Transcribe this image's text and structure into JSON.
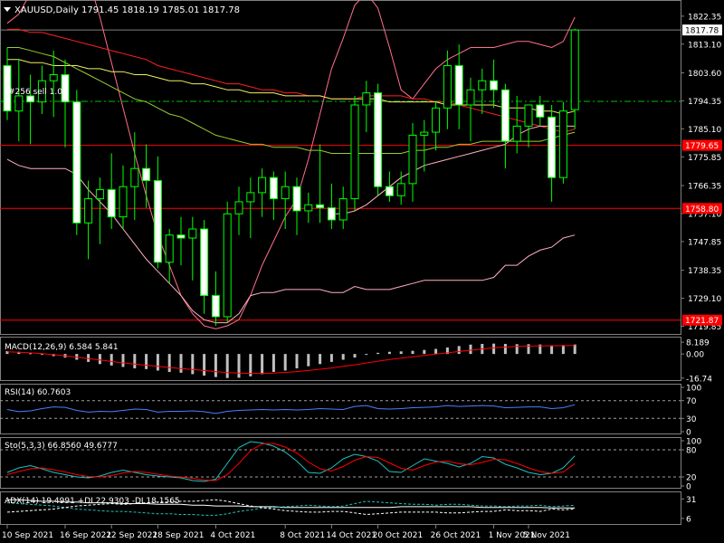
{
  "header": {
    "symbol_line": "XAUUSD,Daily  1791.45 1818.19 1785.01 1817.78",
    "trade_label": "#256  sell 1.00"
  },
  "chart_data": [
    {
      "type": "candlestick",
      "name": "main",
      "ylim": [
        1717.6,
        1826.5
      ],
      "y_ticks": [
        "1822.35",
        "1813.10",
        "1803.60",
        "1794.35",
        "1785.10",
        "1775.85",
        "1766.35",
        "1757.10",
        "1747.85",
        "1738.35",
        "1729.10",
        "1719.85"
      ],
      "y_tick_values": [
        1822.35,
        1813.1,
        1803.6,
        1794.35,
        1785.1,
        1775.85,
        1766.35,
        1757.1,
        1747.85,
        1738.35,
        1729.1,
        1719.85
      ],
      "current_price": {
        "label": "1817.78",
        "value": 1817.78
      },
      "levels": [
        {
          "label": "1779.65",
          "value": 1779.65,
          "color": "#ff0000"
        },
        {
          "label": "1758.80",
          "value": 1758.8,
          "color": "#ff0000"
        },
        {
          "label": "1721.87",
          "value": 1721.87,
          "color": "#ff0000"
        }
      ],
      "trade_line": {
        "value": 1794.2,
        "color": "#00c000"
      },
      "ohlc": [
        [
          1806.0,
          1812.0,
          1788.0,
          1791.0
        ],
        [
          1791.0,
          1808.0,
          1781.0,
          1796.0
        ],
        [
          1796.0,
          1803.0,
          1780.0,
          1794.0
        ],
        [
          1794.0,
          1806.0,
          1790.0,
          1801.0
        ],
        [
          1801.0,
          1811.0,
          1789.0,
          1803.0
        ],
        [
          1803.0,
          1808.0,
          1779.0,
          1794.0
        ],
        [
          1794.0,
          1798.0,
          1750.0,
          1754.0
        ],
        [
          1754.0,
          1768.0,
          1742.0,
          1762.0
        ],
        [
          1762.0,
          1769.0,
          1747.0,
          1765.0
        ],
        [
          1765.0,
          1777.0,
          1752.0,
          1756.0
        ],
        [
          1756.0,
          1773.0,
          1752.0,
          1766.0
        ],
        [
          1766.0,
          1784.0,
          1755.0,
          1772.0
        ],
        [
          1772.0,
          1780.0,
          1759.0,
          1768.0
        ],
        [
          1768.0,
          1776.0,
          1739.0,
          1741.0
        ],
        [
          1741.0,
          1752.0,
          1734.0,
          1750.0
        ],
        [
          1750.0,
          1756.0,
          1740.0,
          1749.0
        ],
        [
          1749.0,
          1756.0,
          1735.0,
          1752.0
        ],
        [
          1752.0,
          1755.0,
          1724.0,
          1730.0
        ],
        [
          1730.0,
          1738.0,
          1720.0,
          1723.0
        ],
        [
          1723.0,
          1761.0,
          1721.0,
          1757.0
        ],
        [
          1757.0,
          1766.0,
          1750.0,
          1761.0
        ],
        [
          1761.0,
          1769.0,
          1749.0,
          1764.0
        ],
        [
          1764.0,
          1772.0,
          1756.0,
          1769.0
        ],
        [
          1769.0,
          1771.0,
          1755.0,
          1762.0
        ],
        [
          1762.0,
          1771.0,
          1752.0,
          1766.0
        ],
        [
          1766.0,
          1769.0,
          1750.0,
          1758.0
        ],
        [
          1758.0,
          1764.0,
          1754.0,
          1760.0
        ],
        [
          1760.0,
          1780.0,
          1754.0,
          1759.0
        ],
        [
          1759.0,
          1767.0,
          1752.0,
          1755.0
        ],
        [
          1755.0,
          1766.0,
          1752.0,
          1762.0
        ],
        [
          1762.0,
          1796.0,
          1758.0,
          1793.0
        ],
        [
          1793.0,
          1801.0,
          1784.0,
          1797.0
        ],
        [
          1797.0,
          1800.0,
          1763.0,
          1766.0
        ],
        [
          1766.0,
          1771.0,
          1761.0,
          1763.0
        ],
        [
          1763.0,
          1771.0,
          1760.0,
          1767.0
        ],
        [
          1767.0,
          1787.0,
          1761.0,
          1783.0
        ],
        [
          1783.0,
          1788.0,
          1771.0,
          1784.0
        ],
        [
          1784.0,
          1794.0,
          1778.0,
          1792.0
        ],
        [
          1792.0,
          1811.0,
          1785.0,
          1806.0
        ],
        [
          1806.0,
          1813.0,
          1785.0,
          1793.0
        ],
        [
          1793.0,
          1802.0,
          1781.0,
          1798.0
        ],
        [
          1798.0,
          1805.0,
          1790.0,
          1801.0
        ],
        [
          1801.0,
          1808.0,
          1792.0,
          1798.0
        ],
        [
          1798.0,
          1800.0,
          1772.0,
          1781.0
        ],
        [
          1781.0,
          1796.0,
          1777.0,
          1786.0
        ],
        [
          1786.0,
          1792.0,
          1779.0,
          1793.0
        ],
        [
          1793.0,
          1796.0,
          1786.0,
          1789.0
        ],
        [
          1789.0,
          1793.0,
          1761.0,
          1769.0
        ],
        [
          1769.0,
          1794.0,
          1767.0,
          1791.0
        ],
        [
          1791.45,
          1818.19,
          1785.01,
          1817.78
        ]
      ],
      "ma_pink": [
        1820,
        1823,
        1830,
        1840,
        1845,
        1847,
        1845,
        1835,
        1822,
        1807,
        1792,
        1777,
        1763,
        1750,
        1740,
        1730,
        1724,
        1720,
        1719,
        1720,
        1722,
        1730,
        1740,
        1748,
        1756,
        1762,
        1775,
        1790,
        1805,
        1815,
        1826,
        1830,
        1825,
        1812,
        1798,
        1795,
        1800,
        1805,
        1808,
        1810,
        1812,
        1812,
        1812,
        1813,
        1814,
        1814,
        1813,
        1812,
        1814,
        1822
      ],
      "ma_red": [
        1818,
        1818,
        1817,
        1817,
        1816,
        1815,
        1814,
        1813,
        1812,
        1811,
        1810,
        1809,
        1808,
        1806,
        1805,
        1804,
        1803,
        1802,
        1801,
        1800,
        1800,
        1799,
        1798,
        1798,
        1797,
        1797,
        1796,
        1796,
        1795,
        1795,
        1795,
        1796,
        1796,
        1796,
        1796,
        1795,
        1795,
        1794,
        1794,
        1793,
        1792,
        1791,
        1790,
        1789,
        1788,
        1787,
        1786,
        1785,
        1784,
        1785
      ],
      "ma_yellow": [
        1808,
        1808,
        1807,
        1807,
        1806,
        1806,
        1806,
        1805,
        1805,
        1804,
        1804,
        1803,
        1803,
        1802,
        1801,
        1801,
        1800,
        1800,
        1799,
        1798,
        1798,
        1797,
        1797,
        1797,
        1796,
        1796,
        1796,
        1796,
        1795,
        1795,
        1795,
        1795,
        1795,
        1794,
        1794,
        1794,
        1794,
        1794,
        1793,
        1793,
        1793,
        1793,
        1793,
        1792,
        1792,
        1792,
        1791,
        1791,
        1790,
        1791
      ],
      "ma_green": [
        1812,
        1812,
        1811,
        1810,
        1809,
        1807,
        1805,
        1803,
        1801,
        1799,
        1797,
        1795,
        1794,
        1792,
        1790,
        1789,
        1787,
        1785,
        1783,
        1782,
        1781,
        1780,
        1780,
        1779,
        1779,
        1779,
        1778,
        1778,
        1777,
        1777,
        1777,
        1777,
        1777,
        1777,
        1777,
        1778,
        1778,
        1779,
        1779,
        1780,
        1780,
        1781,
        1781,
        1781,
        1781,
        1781,
        1781,
        1782,
        1783,
        1784
      ],
      "bb_lower": [
        1775,
        1773,
        1772,
        1772,
        1772,
        1772,
        1770,
        1765,
        1761,
        1757,
        1752,
        1747,
        1742,
        1738,
        1734,
        1730,
        1725,
        1722,
        1721,
        1721,
        1724,
        1730,
        1731,
        1731,
        1732,
        1732,
        1732,
        1732,
        1731,
        1731,
        1733,
        1732,
        1732,
        1732,
        1733,
        1734,
        1735,
        1735,
        1735,
        1735,
        1735,
        1735,
        1736,
        1740,
        1740,
        1743,
        1745,
        1746,
        1749,
        1750
      ],
      "bb_upper_seg": [
        1757,
        1757,
        1758,
        1760,
        1763,
        1766,
        1769,
        1771,
        1773,
        1774,
        1775,
        1776,
        1777,
        1778,
        1779,
        1780,
        1783,
        1785,
        1786,
        1786,
        1786,
        1786
      ],
      "bb_upper_seg_start": 28
    },
    {
      "type": "bar",
      "name": "macd",
      "label": "MACD(12,26,9) 6.584 5.841",
      "ylim": [
        -17.5,
        9.5
      ],
      "y_ticks": [
        "8.189",
        "0.00",
        "-16.74"
      ],
      "y_tick_values": [
        8.189,
        0.0,
        -16.74
      ],
      "values": [
        2.0,
        1.5,
        0.5,
        -0.5,
        -1.5,
        -2.5,
        -4.0,
        -5.5,
        -7.0,
        -8.0,
        -9.0,
        -10.0,
        -10.5,
        -11.5,
        -12.5,
        -13.0,
        -14.0,
        -15.0,
        -16.0,
        -16.7,
        -16.5,
        -15.5,
        -14.0,
        -12.5,
        -11.5,
        -10.0,
        -8.5,
        -7.0,
        -5.5,
        -4.0,
        -2.5,
        -0.5,
        0.8,
        1.5,
        1.8,
        2.2,
        2.8,
        3.5,
        4.5,
        5.5,
        6.5,
        7.0,
        7.2,
        7.0,
        6.8,
        6.8,
        6.6,
        6.0,
        6.2,
        6.584
      ],
      "signal": [
        1.5,
        1.2,
        0.8,
        0.2,
        -0.5,
        -1.3,
        -2.2,
        -3.2,
        -4.2,
        -5.2,
        -6.2,
        -7.0,
        -7.8,
        -8.6,
        -9.4,
        -10.1,
        -10.8,
        -11.5,
        -12.2,
        -12.9,
        -13.3,
        -13.5,
        -13.5,
        -13.2,
        -12.8,
        -12.2,
        -11.5,
        -10.6,
        -9.7,
        -8.6,
        -7.5,
        -6.2,
        -5.0,
        -3.9,
        -2.9,
        -1.9,
        -1.0,
        -0.1,
        0.8,
        1.7,
        2.6,
        3.5,
        4.2,
        4.8,
        5.2,
        5.5,
        5.7,
        5.7,
        5.8,
        5.841
      ],
      "signal_color": "#ff0000"
    },
    {
      "type": "line",
      "name": "rsi",
      "label": "RSI(14) 60.7603",
      "ylim": [
        0,
        100
      ],
      "y_ticks": [
        "100",
        "70",
        "30",
        "0"
      ],
      "y_tick_values": [
        100,
        70,
        30,
        0
      ],
      "levels": [
        70,
        30
      ],
      "values": [
        50,
        45,
        47,
        52,
        56,
        55,
        48,
        44,
        46,
        45,
        48,
        51,
        50,
        44,
        46,
        46,
        47,
        45,
        41,
        46,
        48,
        49,
        50,
        49,
        50,
        49,
        50,
        52,
        51,
        50,
        57,
        59,
        52,
        51,
        52,
        54,
        55,
        56,
        59,
        57,
        58,
        59,
        58,
        54,
        55,
        56,
        56,
        52,
        54,
        60.76
      ],
      "color": "#4a7fff"
    },
    {
      "type": "line",
      "name": "stoch",
      "label": "Sto(5,3,3) 66.8560 49.6777",
      "ylim": [
        0,
        100
      ],
      "y_ticks": [
        "100",
        "80",
        "20",
        "0"
      ],
      "y_tick_values": [
        100,
        80,
        20,
        0
      ],
      "levels": [
        80,
        20
      ],
      "main": [
        30,
        40,
        45,
        38,
        30,
        25,
        20,
        18,
        22,
        30,
        35,
        30,
        25,
        22,
        20,
        18,
        12,
        10,
        15,
        50,
        85,
        98,
        95,
        88,
        75,
        55,
        30,
        28,
        40,
        60,
        70,
        65,
        55,
        32,
        30,
        45,
        60,
        55,
        50,
        42,
        50,
        65,
        62,
        48,
        40,
        30,
        25,
        28,
        40,
        66.856
      ],
      "signal": [
        25,
        32,
        38,
        40,
        36,
        31,
        25,
        21,
        20,
        23,
        29,
        32,
        30,
        26,
        22,
        20,
        17,
        13,
        12,
        25,
        50,
        78,
        93,
        94,
        86,
        73,
        53,
        38,
        33,
        43,
        57,
        65,
        63,
        51,
        39,
        35,
        45,
        53,
        55,
        49,
        47,
        52,
        59,
        58,
        50,
        40,
        32,
        28,
        31,
        49.6777
      ],
      "main_color": "#20c0c0",
      "signal_color": "#ff0000"
    },
    {
      "type": "line",
      "name": "adx",
      "label": "ADX(14) 19.4991 +DI 22.9303 -DI 18.1565",
      "ylim": [
        0,
        36
      ],
      "y_ticks": [
        "31",
        "6"
      ],
      "y_tick_values": [
        31,
        6
      ],
      "adx": [
        30,
        30,
        29,
        28,
        28,
        27,
        27,
        26,
        26,
        26,
        25,
        25,
        25,
        24,
        24,
        24,
        23,
        23,
        22,
        22,
        22,
        21,
        21,
        21,
        20,
        20,
        20,
        20,
        20,
        20,
        20,
        20,
        20,
        20,
        21,
        21,
        21,
        21,
        21,
        21,
        21,
        20,
        20,
        20,
        20,
        20,
        20,
        19.5,
        19.5,
        19.4991
      ],
      "plus_di": [
        26,
        25,
        24,
        23,
        22,
        20,
        18,
        17,
        16,
        15,
        15,
        14,
        13,
        12,
        12,
        11,
        11,
        10,
        10,
        12,
        15,
        17,
        19,
        20,
        21,
        22,
        23,
        22,
        21,
        22,
        25,
        28,
        27,
        26,
        25,
        24,
        24,
        23,
        24,
        24,
        23,
        22,
        22,
        21,
        22,
        22,
        23,
        21,
        22,
        22.9303
      ],
      "minus_di": [
        14,
        15,
        16,
        17,
        18,
        20,
        22,
        23,
        24,
        25,
        24,
        25,
        26,
        27,
        27,
        28,
        28,
        29,
        30,
        28,
        25,
        22,
        20,
        18,
        16,
        15,
        14,
        14,
        15,
        15,
        13,
        11,
        12,
        13,
        14,
        14,
        14,
        14,
        13,
        13,
        14,
        15,
        15,
        17,
        16,
        16,
        15,
        18,
        17,
        18.1565
      ],
      "adx_color": "#ffffff",
      "plus_di_color": "#20c0c0",
      "minus_di_color": "#ffffff"
    }
  ],
  "x_axis": {
    "labels": [
      "10 Sep 2021",
      "16 Sep 2021",
      "22 Sep 2021",
      "28 Sep 2021",
      "4 Oct 2021",
      "8 Oct 2021",
      "14 Oct 2021",
      "20 Oct 2021",
      "26 Oct 2021",
      "1 Nov 2021",
      "5 Nov 2021"
    ],
    "label_bar_index": [
      0,
      5,
      9,
      13,
      18,
      24,
      28,
      32,
      37,
      42,
      45
    ]
  },
  "colors": {
    "bull_body": "#000000",
    "bull_edge": "#00ff00",
    "bear_body": "#ffffff",
    "bear_edge": "#00ff00",
    "grid": "#808080",
    "ma_pink": "#ff6f8a",
    "ma_red": "#ff2020",
    "ma_yellow": "#f0f060",
    "ma_green": "#9acd32",
    "bb": "#ffb0c0"
  }
}
